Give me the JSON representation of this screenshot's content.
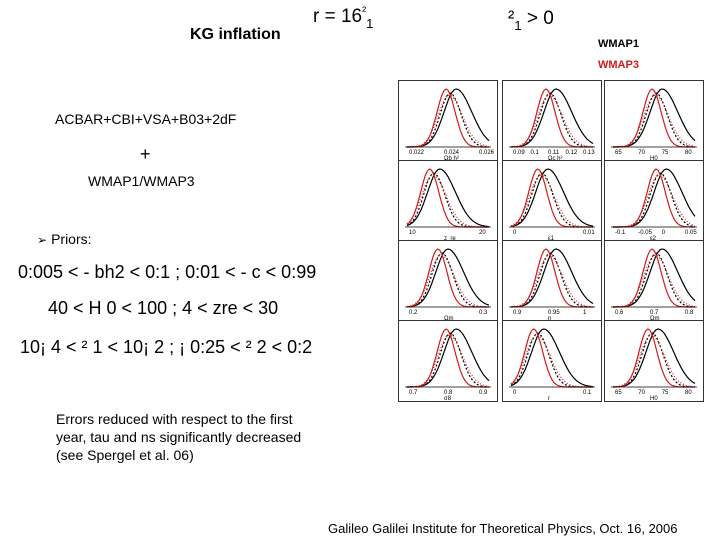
{
  "slide": {
    "title": "KG inflation",
    "eq_top_left": {
      "main": "r = 16",
      "sup": "²",
      "sub": "1"
    },
    "eq_top_right": {
      "main": "²",
      "sub": "1",
      "rest": "> 0"
    },
    "legend": {
      "wmap1": {
        "label": "WMAP1",
        "color": "#000000"
      },
      "wmap3": {
        "label": "WMAP3",
        "color": "#d11a1a"
      }
    },
    "datasets": "ACBAR+CBI+VSA+B03+2dF",
    "plus": "+",
    "wmap_label": "WMAP1/WMAP3",
    "priors_label": "Priors:",
    "prior_lines": [
      "0:005 < - bh2 < 0:1 ;  0:01 < - c < 0:99",
      "40 < H 0 < 100 ;  4 < zre < 30",
      "10¡ 4 < ² 1 < 10¡ 2 ;  ¡ 0:25 < ² 2 < 0:2"
    ],
    "errors_note": "Errors reduced with respect to the first year, tau and ns significantly decreased (see Spergel et al. 06)",
    "footer": "Galileo Galilei Institute for Theoretical Physics, Oct. 16, 2006"
  },
  "panels": [
    {
      "xlabel": "Ωb h²",
      "ticks": [
        "0.022",
        "0.024",
        "0.026"
      ]
    },
    {
      "xlabel": "Ωc h²",
      "ticks": [
        "0.09",
        "0.1",
        "0.11",
        "0.12",
        "0.13"
      ]
    },
    {
      "xlabel": "H0",
      "ticks": [
        "65",
        "70",
        "75",
        "80"
      ]
    },
    {
      "xlabel": "z_re",
      "ticks": [
        "10",
        "20"
      ]
    },
    {
      "xlabel": "ε1",
      "ticks": [
        "0",
        "0.01"
      ]
    },
    {
      "xlabel": "ε2",
      "ticks": [
        "-0.1",
        "-0.05",
        "0",
        "0.05"
      ]
    },
    {
      "xlabel": "Ωm",
      "ticks": [
        "0.2",
        "0.3"
      ]
    },
    {
      "xlabel": "n",
      "ticks": [
        "0.9",
        "0.95",
        "1"
      ]
    },
    {
      "xlabel": "Ωm",
      "ticks": [
        "0.6",
        "0.7",
        "0.8"
      ]
    },
    {
      "xlabel": "σ8",
      "ticks": [
        "0.7",
        "0.8",
        "0.9"
      ]
    },
    {
      "xlabel": "r",
      "ticks": [
        "0",
        "0.1"
      ]
    },
    {
      "xlabel": "H0",
      "ticks": [
        "65",
        "70",
        "75",
        "80"
      ]
    }
  ]
}
